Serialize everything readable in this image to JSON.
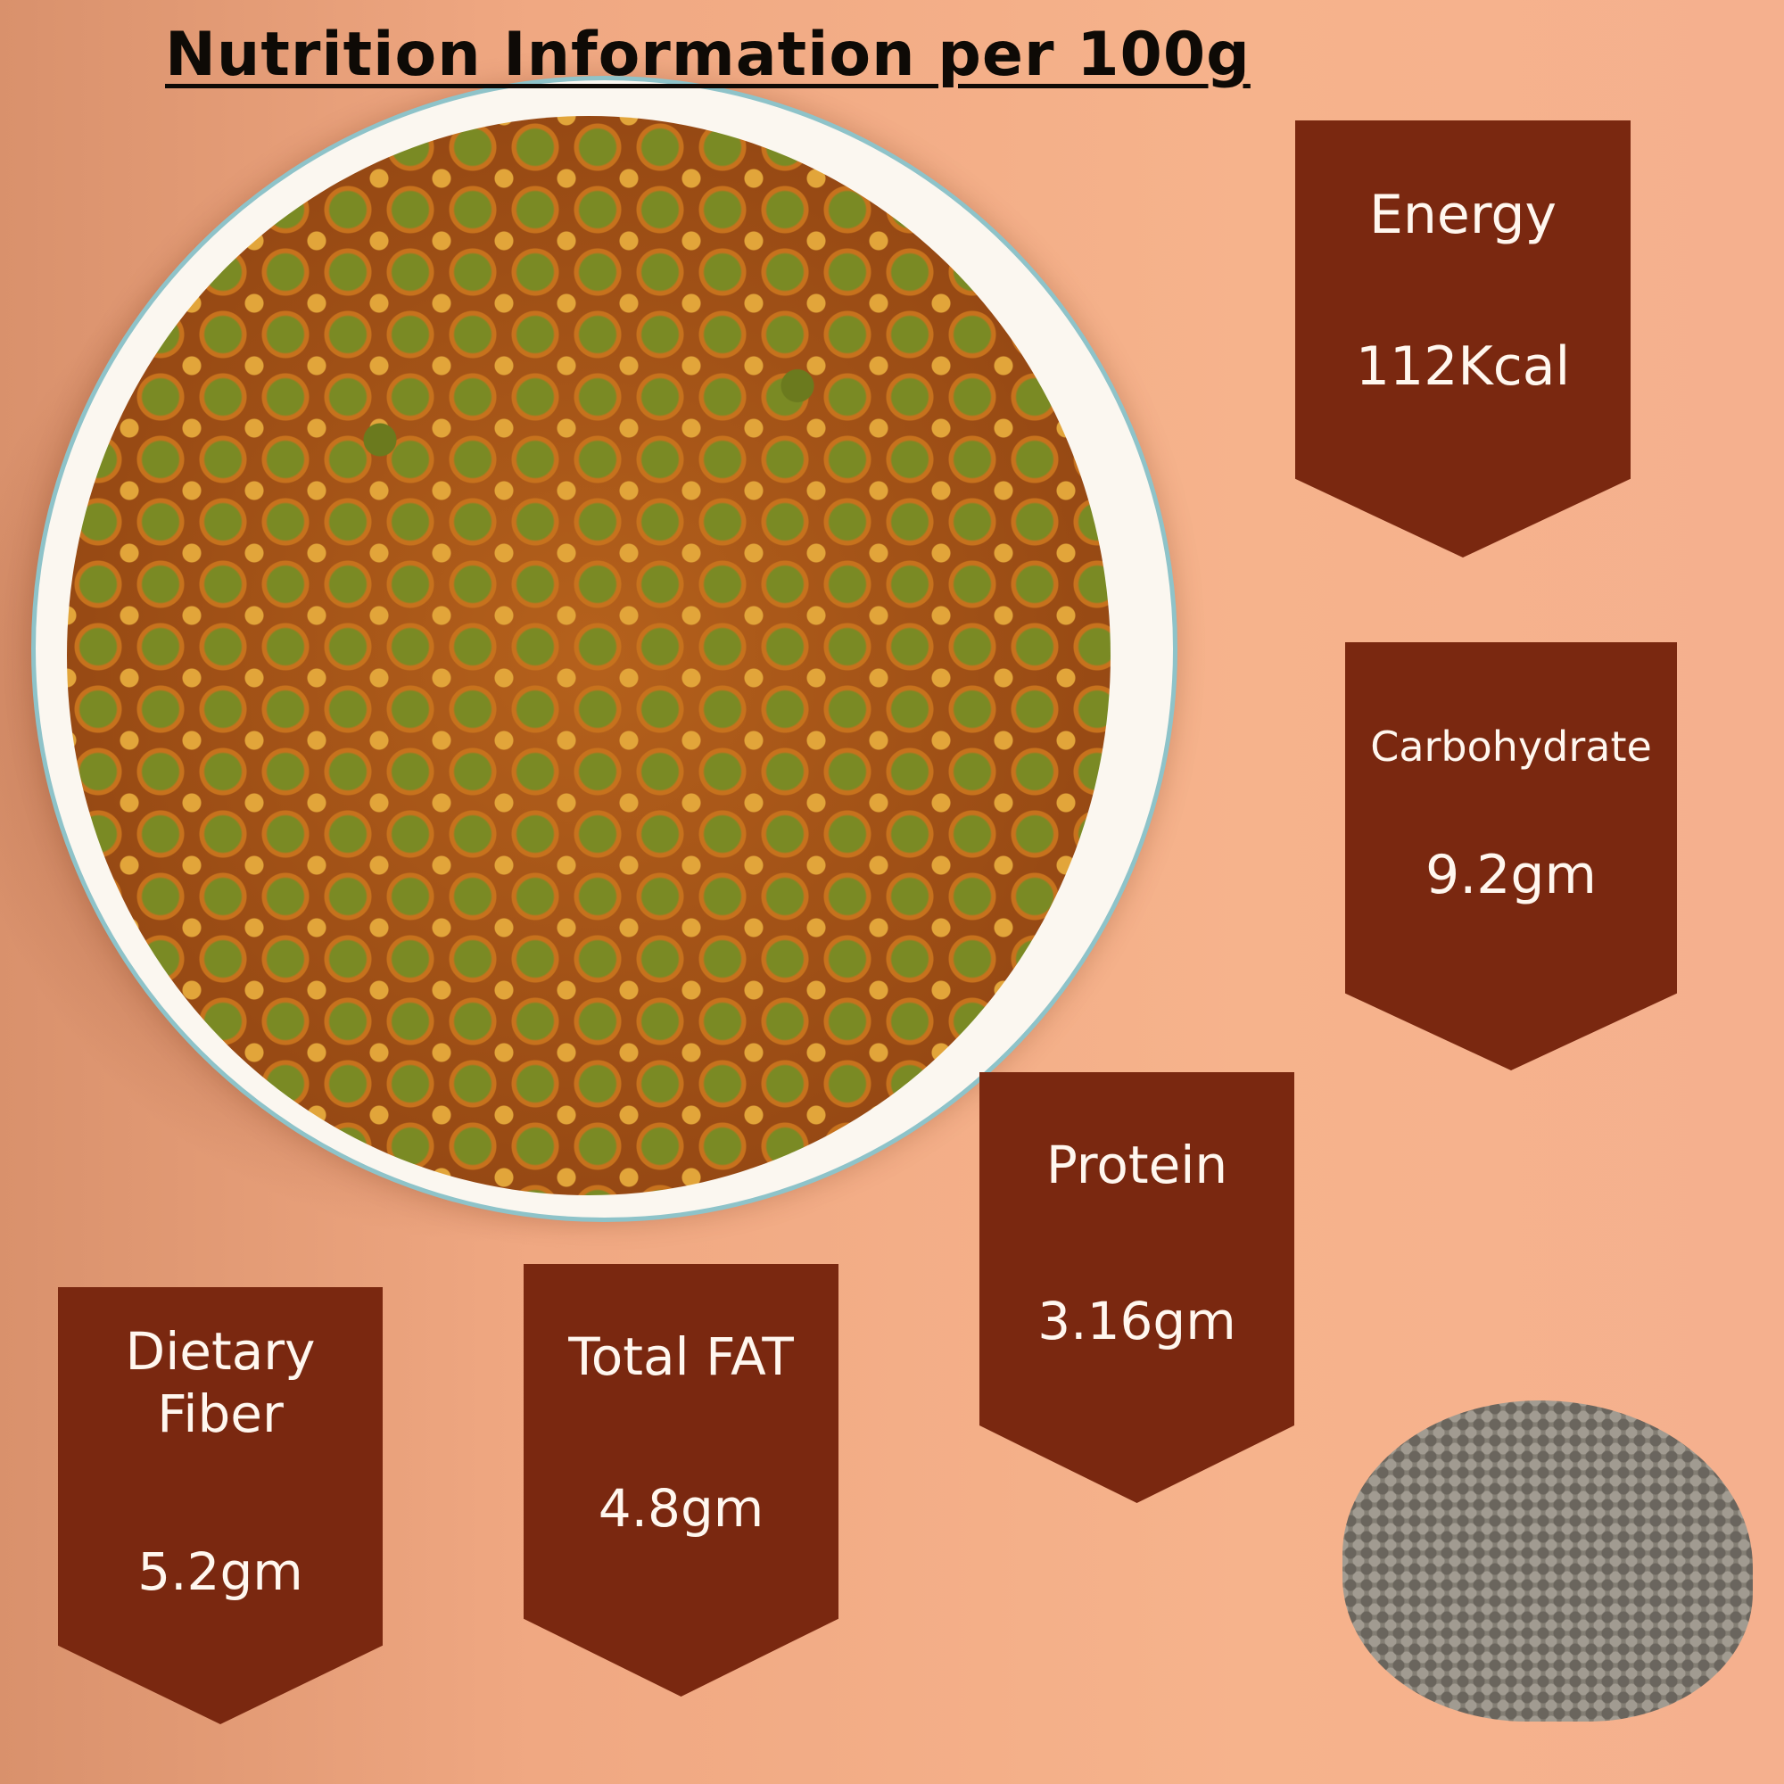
{
  "title": "Nutrition Information per 100g",
  "colors": {
    "badge": "#7a2810",
    "badge_text": "#fff7ef",
    "background": "#f6b38c"
  },
  "nutrients": [
    {
      "label": "Energy",
      "value": "112Kcal"
    },
    {
      "label": "Carbohydrate",
      "value": "9.2gm"
    },
    {
      "label": "Protein",
      "value": "3.16gm"
    },
    {
      "label": "Total FAT",
      "value": "4.8gm"
    },
    {
      "label": "Dietary Fiber",
      "value": "5.2gm"
    }
  ]
}
